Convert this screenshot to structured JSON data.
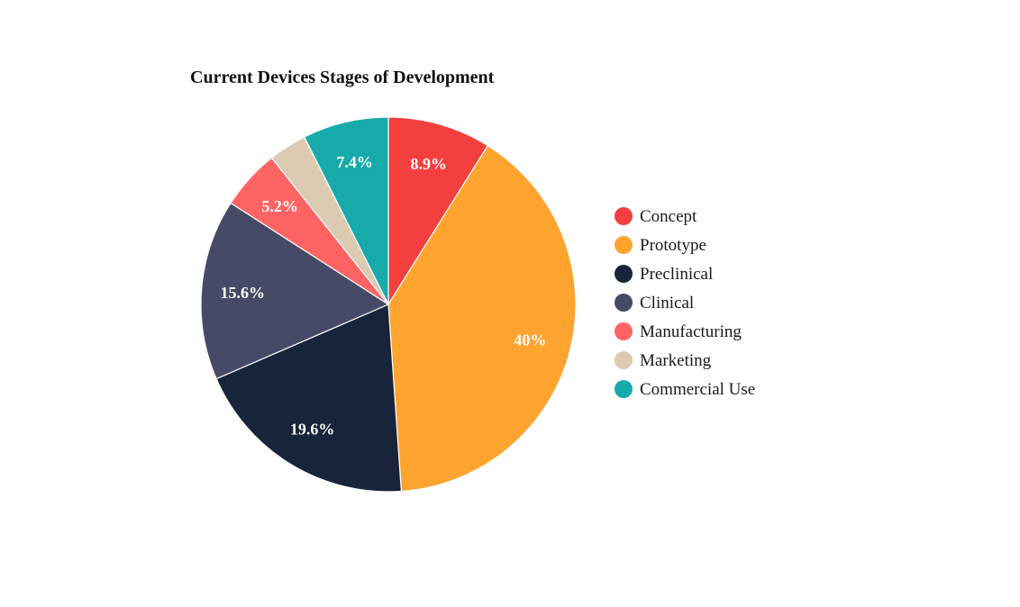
{
  "chart_data": {
    "type": "pie",
    "title": "Current Devices Stages of Development",
    "categories": [
      "Concept",
      "Prototype",
      "Preclinical",
      "Clinical",
      "Manufacturing",
      "Marketing",
      "Commercial Use"
    ],
    "values": [
      8.9,
      40,
      19.6,
      15.6,
      5.2,
      3.3,
      7.4
    ],
    "data_labels": [
      "8.9%",
      "40%",
      "19.6%",
      "15.6%",
      "5.2%",
      "",
      "7.4%"
    ],
    "colors": [
      "#F43F3F",
      "#FFA42F",
      "#172439",
      "#474A67",
      "#FF6465",
      "#DCCBB2",
      "#17AAAA"
    ],
    "legend_position": "right",
    "start_angle": "12 o'clock",
    "direction": "clockwise"
  }
}
